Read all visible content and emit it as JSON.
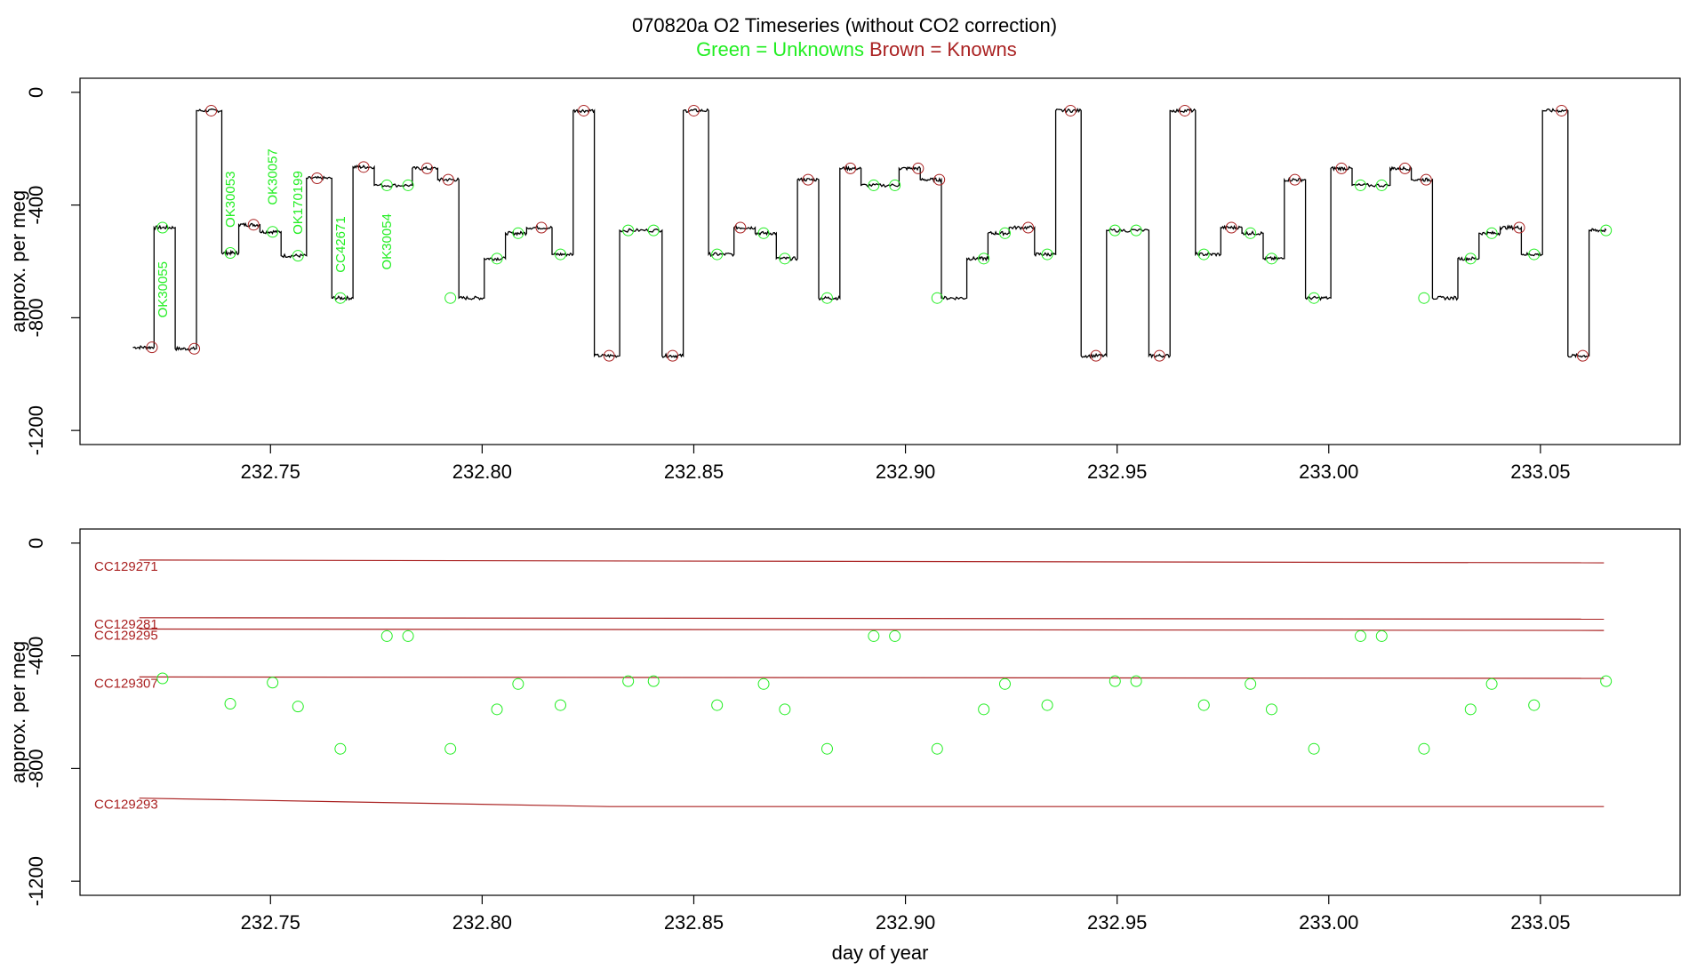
{
  "title": {
    "line1": "070820a   O2 Timeseries (without CO2 correction)",
    "green_part": "Green = Unknowns",
    "brown_part": "Brown = Knowns"
  },
  "colors": {
    "unknown": "#22ee22",
    "known": "#aa2222",
    "trace": "#000000"
  },
  "chart_data": [
    {
      "type": "line",
      "panel": "top",
      "xlim": [
        232.705,
        233.083
      ],
      "ylim": [
        -1250,
        50
      ],
      "xlabel": "",
      "ylabel": "approx. per meg",
      "xticks": [
        232.75,
        232.8,
        232.85,
        232.9,
        232.95,
        233.0,
        233.05
      ],
      "xtick_labels": [
        "232.75",
        "232.80",
        "232.85",
        "232.90",
        "232.95",
        "233.00",
        "233.05"
      ],
      "yticks": [
        0,
        -400,
        -800,
        -1200
      ],
      "ytick_labels": [
        "0",
        "-400",
        "-800",
        "-1200"
      ],
      "trace_segments": [
        {
          "x0": 232.7175,
          "x1": 232.7225,
          "y": -905
        },
        {
          "x0": 232.7225,
          "x1": 232.7275,
          "y": -480
        },
        {
          "x0": 232.7275,
          "x1": 232.7325,
          "y": -910
        },
        {
          "x0": 232.7325,
          "x1": 232.7385,
          "y": -65
        },
        {
          "x0": 232.7385,
          "x1": 232.7425,
          "y": -570
        },
        {
          "x0": 232.7425,
          "x1": 232.7475,
          "y": -470
        },
        {
          "x0": 232.7475,
          "x1": 232.7525,
          "y": -495
        },
        {
          "x0": 232.7525,
          "x1": 232.7585,
          "y": -580
        },
        {
          "x0": 232.7585,
          "x1": 232.7645,
          "y": -305
        },
        {
          "x0": 232.7645,
          "x1": 232.7695,
          "y": -730
        },
        {
          "x0": 232.7695,
          "x1": 232.7745,
          "y": -265
        },
        {
          "x0": 232.7745,
          "x1": 232.7835,
          "y": -330
        },
        {
          "x0": 232.7835,
          "x1": 232.7895,
          "y": -270
        },
        {
          "x0": 232.7895,
          "x1": 232.7945,
          "y": -310
        },
        {
          "x0": 232.7945,
          "x1": 232.8005,
          "y": -730
        },
        {
          "x0": 232.8005,
          "x1": 232.8055,
          "y": -590
        },
        {
          "x0": 232.8055,
          "x1": 232.8105,
          "y": -500
        },
        {
          "x0": 232.8105,
          "x1": 232.8165,
          "y": -480
        },
        {
          "x0": 232.8165,
          "x1": 232.8215,
          "y": -575
        },
        {
          "x0": 232.8215,
          "x1": 232.8265,
          "y": -65
        },
        {
          "x0": 232.8265,
          "x1": 232.8325,
          "y": -935
        },
        {
          "x0": 232.8325,
          "x1": 232.8425,
          "y": -490
        },
        {
          "x0": 232.8425,
          "x1": 232.8475,
          "y": -935
        },
        {
          "x0": 232.8475,
          "x1": 232.8535,
          "y": -65
        },
        {
          "x0": 232.8535,
          "x1": 232.8595,
          "y": -575
        },
        {
          "x0": 232.8595,
          "x1": 232.8645,
          "y": -480
        },
        {
          "x0": 232.8645,
          "x1": 232.8695,
          "y": -500
        },
        {
          "x0": 232.8695,
          "x1": 232.8745,
          "y": -590
        },
        {
          "x0": 232.8745,
          "x1": 232.8795,
          "y": -310
        },
        {
          "x0": 232.8795,
          "x1": 232.8845,
          "y": -730
        },
        {
          "x0": 232.8845,
          "x1": 232.8895,
          "y": -270
        },
        {
          "x0": 232.8895,
          "x1": 232.8985,
          "y": -330
        },
        {
          "x0": 232.8985,
          "x1": 232.9035,
          "y": -270
        },
        {
          "x0": 232.9035,
          "x1": 232.9085,
          "y": -310
        },
        {
          "x0": 232.9085,
          "x1": 232.9145,
          "y": -730
        },
        {
          "x0": 232.9145,
          "x1": 232.9195,
          "y": -590
        },
        {
          "x0": 232.9195,
          "x1": 232.9245,
          "y": -500
        },
        {
          "x0": 232.9245,
          "x1": 232.9305,
          "y": -480
        },
        {
          "x0": 232.9305,
          "x1": 232.9355,
          "y": -575
        },
        {
          "x0": 232.9355,
          "x1": 232.9415,
          "y": -65
        },
        {
          "x0": 232.9415,
          "x1": 232.9475,
          "y": -935
        },
        {
          "x0": 232.9475,
          "x1": 232.9575,
          "y": -490
        },
        {
          "x0": 232.9575,
          "x1": 232.9625,
          "y": -935
        },
        {
          "x0": 232.9625,
          "x1": 232.9685,
          "y": -65
        },
        {
          "x0": 232.9685,
          "x1": 232.9745,
          "y": -575
        },
        {
          "x0": 232.9745,
          "x1": 232.9795,
          "y": -480
        },
        {
          "x0": 232.9795,
          "x1": 232.9845,
          "y": -500
        },
        {
          "x0": 232.9845,
          "x1": 232.9895,
          "y": -590
        },
        {
          "x0": 232.9895,
          "x1": 232.9945,
          "y": -310
        },
        {
          "x0": 232.9945,
          "x1": 233.0005,
          "y": -730
        },
        {
          "x0": 233.0005,
          "x1": 233.0055,
          "y": -270
        },
        {
          "x0": 233.0055,
          "x1": 233.0145,
          "y": -330
        },
        {
          "x0": 233.0145,
          "x1": 233.0195,
          "y": -270
        },
        {
          "x0": 233.0195,
          "x1": 233.0245,
          "y": -310
        },
        {
          "x0": 233.0245,
          "x1": 233.0305,
          "y": -730
        },
        {
          "x0": 233.0305,
          "x1": 233.0355,
          "y": -590
        },
        {
          "x0": 233.0355,
          "x1": 233.0405,
          "y": -500
        },
        {
          "x0": 233.0405,
          "x1": 233.0455,
          "y": -480
        },
        {
          "x0": 233.0455,
          "x1": 233.0505,
          "y": -575
        },
        {
          "x0": 233.0505,
          "x1": 233.0565,
          "y": -65
        },
        {
          "x0": 233.0565,
          "x1": 233.0615,
          "y": -935
        },
        {
          "x0": 233.0615,
          "x1": 233.0655,
          "y": -490
        }
      ],
      "known_points": [
        {
          "x": 232.722,
          "y": -905
        },
        {
          "x": 232.732,
          "y": -910
        },
        {
          "x": 232.736,
          "y": -65
        },
        {
          "x": 232.746,
          "y": -470
        },
        {
          "x": 232.761,
          "y": -305
        },
        {
          "x": 232.772,
          "y": -265
        },
        {
          "x": 232.787,
          "y": -270
        },
        {
          "x": 232.792,
          "y": -310
        },
        {
          "x": 232.814,
          "y": -480
        },
        {
          "x": 232.824,
          "y": -65
        },
        {
          "x": 232.83,
          "y": -935
        },
        {
          "x": 232.845,
          "y": -935
        },
        {
          "x": 232.85,
          "y": -65
        },
        {
          "x": 232.861,
          "y": -480
        },
        {
          "x": 232.877,
          "y": -310
        },
        {
          "x": 232.887,
          "y": -270
        },
        {
          "x": 232.903,
          "y": -270
        },
        {
          "x": 232.908,
          "y": -310
        },
        {
          "x": 232.929,
          "y": -480
        },
        {
          "x": 232.939,
          "y": -65
        },
        {
          "x": 232.945,
          "y": -935
        },
        {
          "x": 232.96,
          "y": -935
        },
        {
          "x": 232.966,
          "y": -65
        },
        {
          "x": 232.977,
          "y": -480
        },
        {
          "x": 232.992,
          "y": -310
        },
        {
          "x": 233.003,
          "y": -270
        },
        {
          "x": 233.018,
          "y": -270
        },
        {
          "x": 233.023,
          "y": -310
        },
        {
          "x": 233.045,
          "y": -480
        },
        {
          "x": 233.055,
          "y": -65
        },
        {
          "x": 233.06,
          "y": -935
        }
      ],
      "unknown_points": [
        {
          "x": 232.7245,
          "y": -480
        },
        {
          "x": 232.7405,
          "y": -570
        },
        {
          "x": 232.7505,
          "y": -495
        },
        {
          "x": 232.7565,
          "y": -580
        },
        {
          "x": 232.7665,
          "y": -730
        },
        {
          "x": 232.7775,
          "y": -330
        },
        {
          "x": 232.7825,
          "y": -330
        },
        {
          "x": 232.7925,
          "y": -730
        },
        {
          "x": 232.8035,
          "y": -590
        },
        {
          "x": 232.8085,
          "y": -500
        },
        {
          "x": 232.8185,
          "y": -575
        },
        {
          "x": 232.8345,
          "y": -490
        },
        {
          "x": 232.8405,
          "y": -490
        },
        {
          "x": 232.8555,
          "y": -575
        },
        {
          "x": 232.8665,
          "y": -500
        },
        {
          "x": 232.8715,
          "y": -590
        },
        {
          "x": 232.8815,
          "y": -730
        },
        {
          "x": 232.8925,
          "y": -330
        },
        {
          "x": 232.8975,
          "y": -330
        },
        {
          "x": 232.9075,
          "y": -730
        },
        {
          "x": 232.9185,
          "y": -590
        },
        {
          "x": 232.9235,
          "y": -500
        },
        {
          "x": 232.9335,
          "y": -575
        },
        {
          "x": 232.9495,
          "y": -490
        },
        {
          "x": 232.9545,
          "y": -490
        },
        {
          "x": 232.9705,
          "y": -575
        },
        {
          "x": 232.9815,
          "y": -500
        },
        {
          "x": 232.9865,
          "y": -590
        },
        {
          "x": 232.9965,
          "y": -730
        },
        {
          "x": 233.0075,
          "y": -330
        },
        {
          "x": 233.0125,
          "y": -330
        },
        {
          "x": 233.0225,
          "y": -730
        },
        {
          "x": 233.0335,
          "y": -590
        },
        {
          "x": 233.0385,
          "y": -500
        },
        {
          "x": 233.0485,
          "y": -575
        },
        {
          "x": 233.0655,
          "y": -490
        }
      ],
      "annotations": [
        {
          "text": "OK30055",
          "x": 232.7245,
          "y": -800
        },
        {
          "text": "OK30053",
          "x": 232.7405,
          "y": -480
        },
        {
          "text": "OK30057",
          "x": 232.7505,
          "y": -400
        },
        {
          "text": "OK170199",
          "x": 232.7565,
          "y": -505
        },
        {
          "text": "CC42671",
          "x": 232.7665,
          "y": -640
        },
        {
          "text": "OK30054",
          "x": 232.7775,
          "y": -630
        }
      ]
    },
    {
      "type": "scatter",
      "panel": "bottom",
      "xlim": [
        232.705,
        233.083
      ],
      "ylim": [
        -1250,
        50
      ],
      "xlabel": "day of year",
      "ylabel": "approx. per meg",
      "xticks": [
        232.75,
        232.8,
        232.85,
        232.9,
        232.95,
        233.0,
        233.05
      ],
      "xtick_labels": [
        "232.75",
        "232.80",
        "232.85",
        "232.90",
        "232.95",
        "233.00",
        "233.05"
      ],
      "yticks": [
        0,
        -400,
        -800,
        -1200
      ],
      "ytick_labels": [
        "0",
        "-400",
        "-800",
        "-1200"
      ],
      "reference_lines": [
        {
          "name": "CC129271",
          "x": [
            232.719,
            233.065
          ],
          "y": [
            -60,
            -70
          ]
        },
        {
          "name": "CC129281",
          "x": [
            232.719,
            233.065
          ],
          "y": [
            -265,
            -270
          ]
        },
        {
          "name": "CC129295",
          "x": [
            232.719,
            233.065
          ],
          "y": [
            -305,
            -310
          ]
        },
        {
          "name": "CC129307",
          "x": [
            232.719,
            233.065
          ],
          "y": [
            -475,
            -480
          ]
        },
        {
          "name": "CC129293",
          "x": [
            232.719,
            232.83,
            233.065
          ],
          "y": [
            -905,
            -935,
            -935
          ]
        }
      ],
      "unknown_points": [
        {
          "x": 232.7245,
          "y": -480
        },
        {
          "x": 232.7405,
          "y": -570
        },
        {
          "x": 232.7505,
          "y": -495
        },
        {
          "x": 232.7565,
          "y": -580
        },
        {
          "x": 232.7665,
          "y": -730
        },
        {
          "x": 232.7775,
          "y": -330
        },
        {
          "x": 232.7825,
          "y": -330
        },
        {
          "x": 232.7925,
          "y": -730
        },
        {
          "x": 232.8035,
          "y": -590
        },
        {
          "x": 232.8085,
          "y": -500
        },
        {
          "x": 232.8185,
          "y": -575
        },
        {
          "x": 232.8345,
          "y": -490
        },
        {
          "x": 232.8405,
          "y": -490
        },
        {
          "x": 232.8555,
          "y": -575
        },
        {
          "x": 232.8665,
          "y": -500
        },
        {
          "x": 232.8715,
          "y": -590
        },
        {
          "x": 232.8815,
          "y": -730
        },
        {
          "x": 232.8925,
          "y": -330
        },
        {
          "x": 232.8975,
          "y": -330
        },
        {
          "x": 232.9075,
          "y": -730
        },
        {
          "x": 232.9185,
          "y": -590
        },
        {
          "x": 232.9235,
          "y": -500
        },
        {
          "x": 232.9335,
          "y": -575
        },
        {
          "x": 232.9495,
          "y": -490
        },
        {
          "x": 232.9545,
          "y": -490
        },
        {
          "x": 232.9705,
          "y": -575
        },
        {
          "x": 232.9815,
          "y": -500
        },
        {
          "x": 232.9865,
          "y": -590
        },
        {
          "x": 232.9965,
          "y": -730
        },
        {
          "x": 233.0075,
          "y": -330
        },
        {
          "x": 233.0125,
          "y": -330
        },
        {
          "x": 233.0225,
          "y": -730
        },
        {
          "x": 233.0335,
          "y": -590
        },
        {
          "x": 233.0385,
          "y": -500
        },
        {
          "x": 233.0485,
          "y": -575
        },
        {
          "x": 233.0655,
          "y": -490
        }
      ]
    }
  ]
}
